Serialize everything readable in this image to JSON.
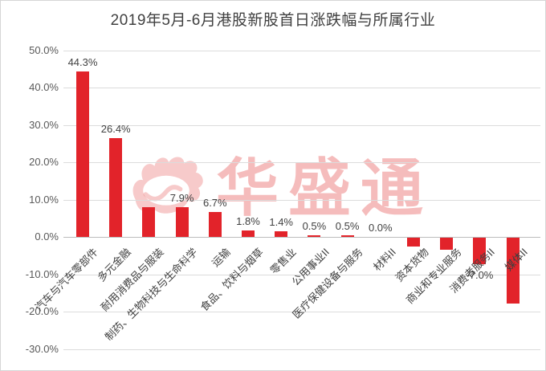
{
  "title": "2019年5月-6月港股新股首日涨跌幅与所属行业",
  "watermark": {
    "text": "华盛通",
    "icon": "flame-icon"
  },
  "colors": {
    "bar": "#e2232a",
    "grid": "#dcdcdc",
    "zero_axis": "#bdbdbd",
    "tick_text": "#595959",
    "label_text": "#404040",
    "watermark": "rgba(228,80,80,0.38)"
  },
  "chart_data": {
    "type": "bar",
    "title": "2019年5月-6月港股新股首日涨跌幅与所属行业",
    "categories": [
      "汽车与汽车零部件",
      "多元金融",
      "耐用消费品与服装",
      "制药、生物科技与生命科学",
      "运输",
      "食品、饮料与烟草",
      "零售业",
      "公用事业II",
      "医疗保健设备与服务",
      "材料II",
      "资本货物",
      "商业和专业服务",
      "消费者服务II",
      "媒体II"
    ],
    "values": [
      44.3,
      26.4,
      7.9,
      7.9,
      6.7,
      1.8,
      1.4,
      0.5,
      0.5,
      0.0,
      -2.4,
      -3.2,
      -7.0,
      -17.6
    ],
    "value_labels": [
      "44.3%",
      "26.4%",
      null,
      "7.9%",
      "6.7%",
      "1.8%",
      "1.4%",
      "0.5%",
      "0.5%",
      "0.0%",
      null,
      null,
      "-7.0%",
      null
    ],
    "y_ticks": [
      "50.0%",
      "40.0%",
      "30.0%",
      "20.0%",
      "10.0%",
      "0.0%",
      "-10.0%",
      "-20.0%",
      "-30.0%"
    ],
    "ylim": [
      -30,
      50
    ],
    "xlabel": "",
    "ylabel": "",
    "grid": true,
    "legend": false,
    "bar_color": "#e2232a"
  }
}
